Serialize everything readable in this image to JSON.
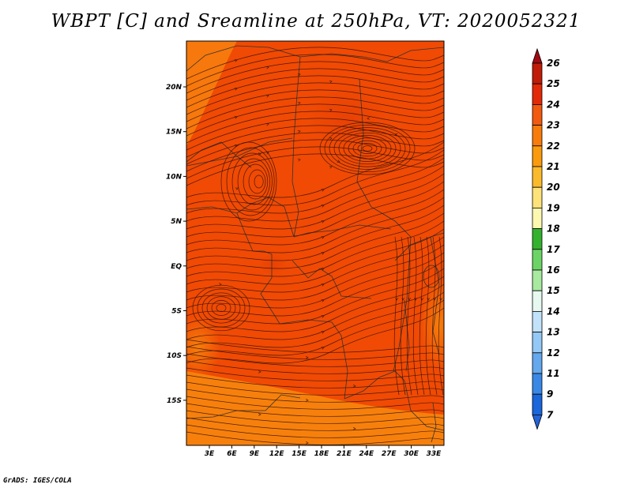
{
  "title": "WBPT [C] and Sreamline at 250hPa, VT: 2020052321",
  "footer": "GrADS: IGES/COLA",
  "map": {
    "lon_labels": [
      "3E",
      "6E",
      "9E",
      "12E",
      "15E",
      "18E",
      "21E",
      "24E",
      "27E",
      "30E",
      "33E"
    ],
    "lat_labels": [
      "20N",
      "15N",
      "10N",
      "5N",
      "EQ",
      "5S",
      "10S",
      "15S"
    ],
    "shading": {
      "dominant_value": "23",
      "dominant_color": "#f04a04"
    }
  },
  "colorbar": {
    "labels": [
      "26",
      "25",
      "24",
      "23",
      "22",
      "21",
      "20",
      "19",
      "18",
      "17",
      "16",
      "15",
      "14",
      "13",
      "12",
      "11",
      "9",
      "7"
    ],
    "colors": [
      "#a50a0a",
      "#c01c08",
      "#e22a08",
      "#f25a10",
      "#f87c0c",
      "#fa9a0e",
      "#fbba2c",
      "#fde27a",
      "#fdf8b0",
      "#34b22e",
      "#6cd466",
      "#a8eaa0",
      "#e6f8f0",
      "#c2e2fa",
      "#94c8f6",
      "#64a8ee",
      "#3a88e6",
      "#1a66da"
    ],
    "top_arrow_color": "#a00a12",
    "bottom_arrow_color": "#2462d6"
  }
}
